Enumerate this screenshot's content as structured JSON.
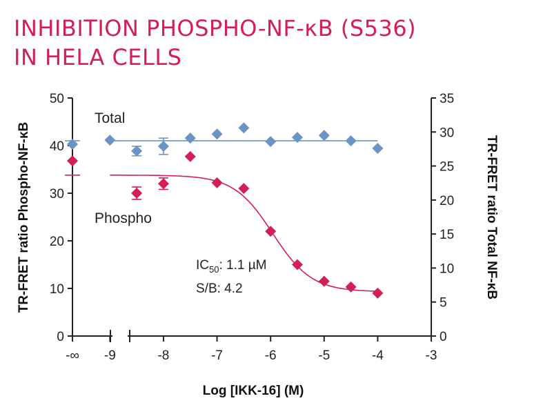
{
  "title_line1": "INHIBITION PHOSPHO-NF-κB (S536)",
  "title_line2": "IN HELA CELLS",
  "colors": {
    "title": "#d21f55",
    "total": "#6b93c4",
    "phospho": "#d21f55",
    "axis": "#222222"
  },
  "chart_data": {
    "type": "scatter",
    "xlabel": "Log [IKK-16] (M)",
    "ylabel_left": "TR-FRET ratio Phospho-NF-κB",
    "ylabel_right": "TR-FRET ratio Total NF-κB",
    "xlim": [
      -9.7,
      -3
    ],
    "ylim_left": [
      0,
      50
    ],
    "ylim_right": [
      0,
      35
    ],
    "x_ticks": [
      {
        "value": -9.7,
        "label": "-∞"
      },
      {
        "value": -9,
        "label": "-9"
      },
      {
        "value": -8,
        "label": "-8"
      },
      {
        "value": -7,
        "label": "-7"
      },
      {
        "value": -6,
        "label": "-6"
      },
      {
        "value": -5,
        "label": "-5"
      },
      {
        "value": -4,
        "label": "-4"
      },
      {
        "value": -3,
        "label": "-3"
      }
    ],
    "y_ticks_left": [
      0,
      10,
      20,
      30,
      40,
      50
    ],
    "y_ticks_right": [
      0,
      5,
      10,
      15,
      20,
      25,
      30,
      35
    ],
    "series": [
      {
        "name": "Total",
        "axis": "right",
        "points": [
          {
            "x": -9.7,
            "y": 28.2
          },
          {
            "x": -9,
            "y": 28.8
          },
          {
            "x": -8.5,
            "y": 27.2,
            "err": 0.7
          },
          {
            "x": -8,
            "y": 27.9,
            "err": 1.2
          },
          {
            "x": -7.5,
            "y": 29.1
          },
          {
            "x": -7,
            "y": 29.7
          },
          {
            "x": -6.5,
            "y": 30.6
          },
          {
            "x": -6,
            "y": 28.6
          },
          {
            "x": -5.5,
            "y": 29.2
          },
          {
            "x": -5,
            "y": 29.5
          },
          {
            "x": -4.5,
            "y": 28.7
          },
          {
            "x": -4,
            "y": 27.6
          }
        ],
        "fit": {
          "type": "flat",
          "value": 28.7
        }
      },
      {
        "name": "Phospho",
        "axis": "left",
        "points": [
          {
            "x": -9.7,
            "y": 36.8
          },
          {
            "x": -8.5,
            "y": 30.0,
            "err": 1.3
          },
          {
            "x": -8,
            "y": 32.0,
            "err": 1.2
          },
          {
            "x": -7.5,
            "y": 37.7
          },
          {
            "x": -7,
            "y": 32.2
          },
          {
            "x": -6.5,
            "y": 31.0
          },
          {
            "x": -6,
            "y": 22.0
          },
          {
            "x": -5.5,
            "y": 15.0
          },
          {
            "x": -5,
            "y": 11.5
          },
          {
            "x": -4.5,
            "y": 10.3
          },
          {
            "x": -4,
            "y": 9.0
          }
        ],
        "fit": {
          "type": "sigmoid",
          "top": 33.8,
          "bottom": 9.3,
          "log_ic50": -5.96,
          "hill": 1.2
        }
      }
    ],
    "annotations": [
      {
        "text": "IC",
        "sub": "50",
        "rest": ": 1.1 µM"
      },
      {
        "text": "S/B: 4.2"
      }
    ]
  }
}
